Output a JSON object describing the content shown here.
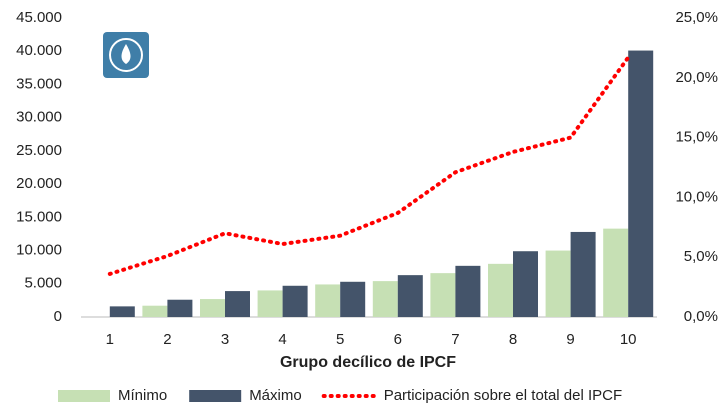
{
  "chart_data": {
    "type": "bar",
    "x_label": "Grupo decílico de IPCF",
    "categories": [
      "1",
      "2",
      "3",
      "4",
      "5",
      "6",
      "7",
      "8",
      "9",
      "10"
    ],
    "series": [
      {
        "name": "Mínimo",
        "color": "#c6e0b4",
        "values": [
          0,
          1700,
          2700,
          4000,
          4900,
          5400,
          6600,
          8000,
          10000,
          13300
        ]
      },
      {
        "name": "Máximo",
        "color": "#44546a",
        "values": [
          1600,
          2600,
          3900,
          4700,
          5300,
          6300,
          7700,
          9900,
          12800,
          40100
        ]
      },
      {
        "name": "Participación sobre el total del IPCF",
        "color": "#ff0000",
        "type": "line",
        "style": "dotted",
        "axis": "y2",
        "values": [
          3.6,
          5.1,
          7.0,
          6.1,
          6.8,
          8.7,
          12.1,
          13.8,
          15.0,
          21.7
        ]
      }
    ],
    "ylim": [
      0,
      45000
    ],
    "yticks": [
      0,
      {
        "value": 5000,
        "label": "5.000"
      },
      {
        "value": 10000,
        "label": "10.000"
      },
      {
        "value": 15000,
        "label": "15.000"
      },
      {
        "value": 20000,
        "label": "20.000"
      },
      {
        "value": 25000,
        "label": "25.000"
      },
      {
        "value": 30000,
        "label": "30.000"
      },
      {
        "value": 35000,
        "label": "35.000"
      },
      {
        "value": 40000,
        "label": "40.000"
      },
      {
        "value": 45000,
        "label": "45.000"
      }
    ],
    "y2lim": [
      0,
      25
    ],
    "y2ticks": [
      {
        "value": 0,
        "label": "0,0%"
      },
      {
        "value": 5,
        "label": "5,0%"
      },
      {
        "value": 10,
        "label": "10,0%"
      },
      {
        "value": 15,
        "label": "15,0%"
      },
      {
        "value": 20,
        "label": "20,0%"
      },
      {
        "value": 25,
        "label": "25,0%"
      }
    ],
    "legend": "bottom"
  }
}
